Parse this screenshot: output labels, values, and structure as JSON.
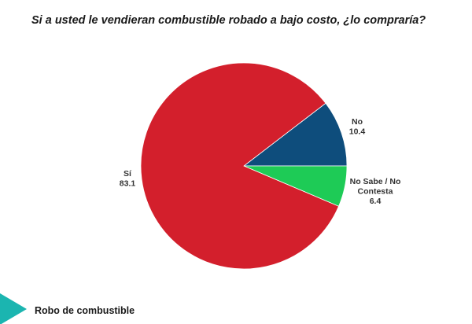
{
  "title": "Si a usted le vendieran combustible robado a bajo costo, ¿lo compraría?",
  "footer": {
    "label": "Robo de combustible",
    "accent_color": "#1bb5b0"
  },
  "chart_data": {
    "type": "pie",
    "title": "Si a usted le vendieran combustible robado a bajo costo, ¿lo compraría?",
    "slices": [
      {
        "name": "No",
        "value": 10.4,
        "color": "#0e4d7c"
      },
      {
        "name": "No Sabe / No Contesta",
        "value": 6.4,
        "color": "#1ecb56"
      },
      {
        "name": "Sí",
        "value": 83.1,
        "color": "#d31f2c"
      }
    ],
    "labels": [
      {
        "lines": [
          "No",
          "10.4"
        ]
      },
      {
        "lines": [
          "No Sabe / No",
          "Contesta",
          "6.4"
        ]
      },
      {
        "lines": [
          "Sí",
          "83.1"
        ]
      }
    ]
  }
}
